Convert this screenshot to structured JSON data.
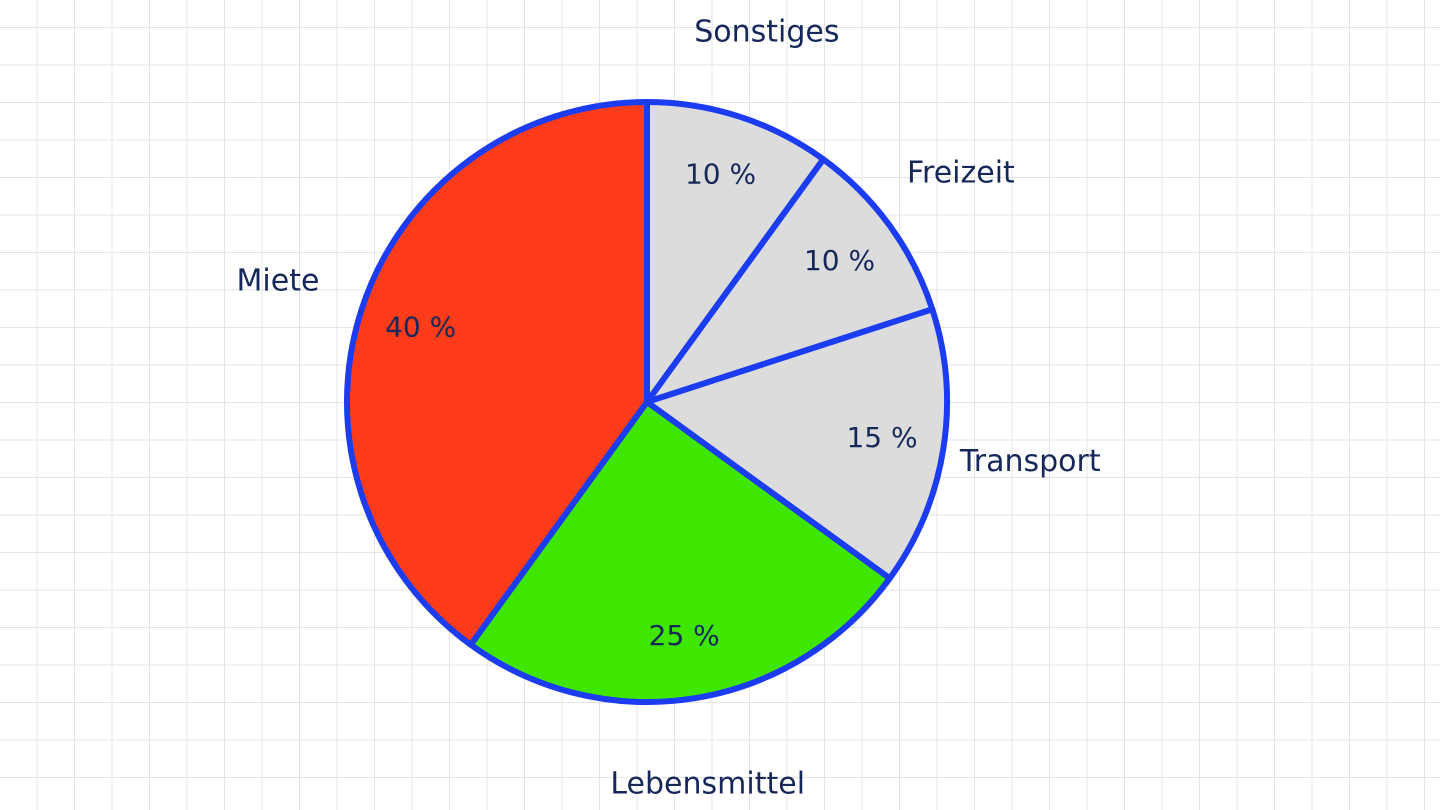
{
  "chart_data": {
    "type": "pie",
    "categories": [
      "Sonstiges",
      "Freizeit",
      "Transport",
      "Lebensmittel",
      "Miete"
    ],
    "values": [
      10,
      10,
      15,
      25,
      40
    ],
    "value_labels": [
      "10 %",
      "10 %",
      "15 %",
      "25 %",
      "40 %"
    ],
    "colors": [
      "#dcdcdc",
      "#dcdcdc",
      "#dcdcdc",
      "#3ee600",
      "#ff3c1a"
    ],
    "edge_color": "#1c3cf2"
  }
}
